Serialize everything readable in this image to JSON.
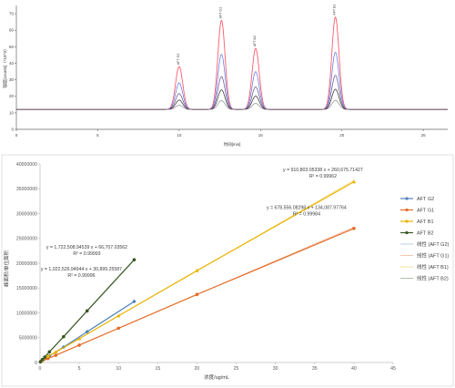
{
  "chart_data": [
    {
      "type": "line",
      "title": "",
      "xlabel": "时间[min]",
      "ylabel": "强度[counts]（*10^3）",
      "xlim": [
        0,
        26.5
      ],
      "ylim": [
        0,
        75
      ],
      "x_ticks": [
        0,
        5,
        10,
        15,
        20,
        25
      ],
      "y_ticks": [
        0,
        10,
        20,
        30,
        40,
        50,
        60,
        70
      ],
      "baseline": 12,
      "grid": false,
      "peaks": [
        {
          "label": "AFT G2",
          "rt": 10.0,
          "height": 38
        },
        {
          "label": "AFT G1",
          "rt": 12.6,
          "height": 66
        },
        {
          "label": "AFT B2",
          "rt": 14.7,
          "height": 49
        },
        {
          "label": "AFT B1",
          "rt": 19.6,
          "height": 68
        }
      ],
      "series": [
        {
          "color": "#ff5c6c",
          "scale": 1.0
        },
        {
          "color": "#5a6fe8",
          "scale": 0.62
        },
        {
          "color": "#5f4b8b",
          "scale": 0.37
        },
        {
          "color": "#2b2b2b",
          "scale": 0.22
        },
        {
          "color": "#8c8c8c",
          "scale": 0.1
        }
      ]
    },
    {
      "type": "scatter",
      "title": "",
      "xlabel": "浓度/ug/mL",
      "ylabel": "峰面积/单位面积",
      "xlim": [
        0,
        45
      ],
      "ylim": [
        0,
        40000000
      ],
      "x_ticks": [
        0,
        5,
        10,
        15,
        20,
        25,
        30,
        35,
        40,
        45
      ],
      "y_ticks": [
        0,
        5000000,
        10000000,
        15000000,
        20000000,
        25000000,
        30000000,
        35000000,
        40000000
      ],
      "y_tick_labels": [
        "0",
        "5000000",
        "10000000",
        "15000000",
        "20000000",
        "25000000",
        "30000000",
        "35000000",
        "40000000"
      ],
      "legend_position": "right",
      "series": [
        {
          "name": "AFT G2",
          "color": "#4f81bd",
          "marker": "diamond",
          "x": [
            0.05,
            0.3,
            0.6,
            1.2,
            3.0,
            6.0,
            12.0
          ],
          "y": [
            150000,
            400000,
            700000,
            1350000,
            3100000,
            6200000,
            12300000
          ],
          "trend": {
            "label": "线性 (AFT G2)",
            "slope": 1022526.94944,
            "intercept": 30899.25587
          },
          "equation": [
            "y = 1,022,526.94944 x + 30,899.25587",
            "R² = 0.99996"
          ]
        },
        {
          "name": "AFT G1",
          "color": "#e46c2a",
          "marker": "circle",
          "x": [
            0.2,
            1.0,
            2.0,
            5.0,
            10.0,
            20.0,
            40.0
          ],
          "y": [
            250000,
            800000,
            1450000,
            3500000,
            6900000,
            13700000,
            27000000
          ],
          "trend": {
            "label": "线性 (AFT G1)",
            "slope": 678556.08298,
            "intercept": 134087.97764
          },
          "equation": [
            "y = 678,556.08298 x + 134,087.97764",
            "R² = 0.99984"
          ]
        },
        {
          "name": "AFT B1",
          "color": "#e8b300",
          "marker": "triangle",
          "x": [
            0.2,
            1.0,
            2.0,
            5.0,
            10.0,
            20.0,
            40.0
          ],
          "y": [
            400000,
            1250000,
            2100000,
            4800000,
            9400000,
            18500000,
            36400000
          ],
          "trend": {
            "label": "线性 (AFT B1)",
            "slope": 910803.05338,
            "intercept": 260675.71427
          },
          "equation": [
            "y = 910,803.05338 x + 260,675.71427",
            "R² = 0.99962"
          ]
        },
        {
          "name": "AFT B2",
          "color": "#375623",
          "marker": "circle",
          "x": [
            0.05,
            0.3,
            0.6,
            1.2,
            3.0,
            6.0,
            12.0
          ],
          "y": [
            150000,
            600000,
            1100000,
            2150000,
            5200000,
            10400000,
            20700000
          ],
          "trend": {
            "label": "线性 (AFT B2)",
            "slope": 1722508.94539,
            "intercept": 66707.03562
          },
          "equation": [
            "y = 1,722,508.94539 x + 66,707.03562",
            "R² = 0.99993"
          ]
        }
      ]
    }
  ]
}
